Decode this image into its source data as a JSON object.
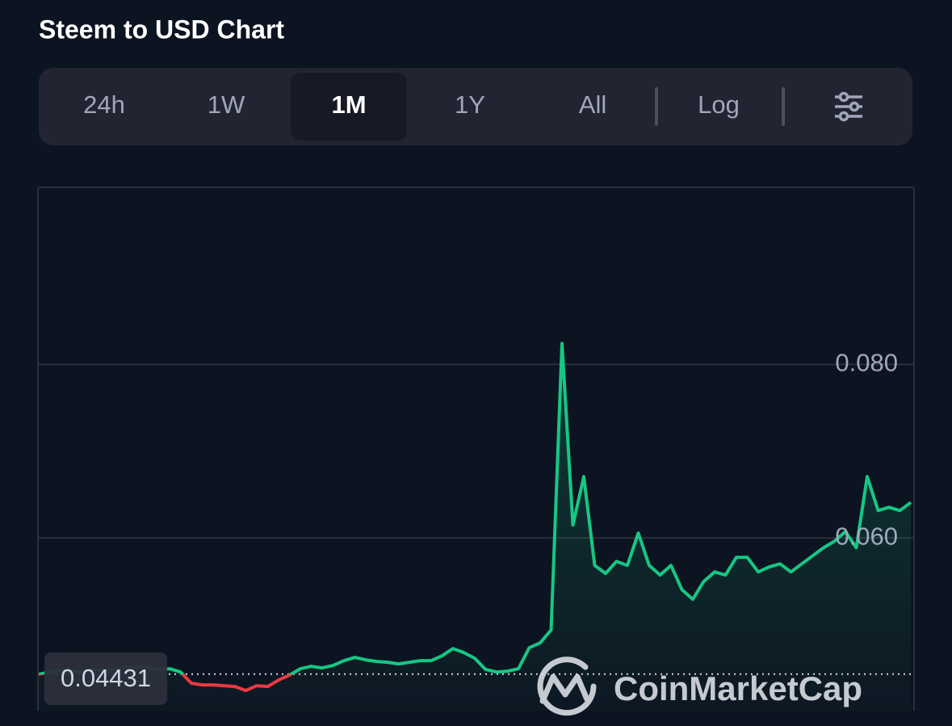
{
  "header": {
    "title": "Steem to USD Chart"
  },
  "toolbar": {
    "tabs": [
      "24h",
      "1W",
      "1M",
      "1Y",
      "All"
    ],
    "active": "1M",
    "log": "Log"
  },
  "chart_data": {
    "type": "line",
    "values": [
      0.04428,
      0.04456,
      0.04474,
      0.04465,
      0.04456,
      0.04484,
      0.04474,
      0.04493,
      0.04512,
      0.04512,
      0.04512,
      0.04484,
      0.04493,
      0.04456,
      0.04326,
      0.04307,
      0.04307,
      0.04298,
      0.04288,
      0.04242,
      0.04298,
      0.04288,
      0.04363,
      0.04419,
      0.04493,
      0.04521,
      0.04502,
      0.0453,
      0.04586,
      0.04623,
      0.04595,
      0.04577,
      0.04567,
      0.04549,
      0.04567,
      0.04586,
      0.04586,
      0.04642,
      0.04726,
      0.04679,
      0.04614,
      0.04484,
      0.04456,
      0.04465,
      0.04493,
      0.04735,
      0.04791,
      0.0494,
      0.08242,
      0.06149,
      0.06707,
      0.05684,
      0.05591,
      0.0573,
      0.05684,
      0.06056,
      0.05684,
      0.05572,
      0.05684,
      0.05405,
      0.05293,
      0.05498,
      0.05609,
      0.05572,
      0.05777,
      0.05777,
      0.05609,
      0.05665,
      0.05702,
      0.05609,
      0.05702,
      0.05795,
      0.05888,
      0.05963,
      0.06074,
      0.05888,
      0.06707,
      0.06316,
      0.06353,
      0.06316,
      0.06409
    ],
    "baseline": 0.04431,
    "up_color": "#16c784",
    "down_color": "#ea3943",
    "ylim": [
      0.0401,
      0.1004
    ],
    "yticks": [
      {
        "value": 0.06,
        "label": "0.060"
      },
      {
        "value": 0.08,
        "label": "0.080"
      }
    ],
    "grid": true,
    "watermark": "CoinMarketCap"
  }
}
